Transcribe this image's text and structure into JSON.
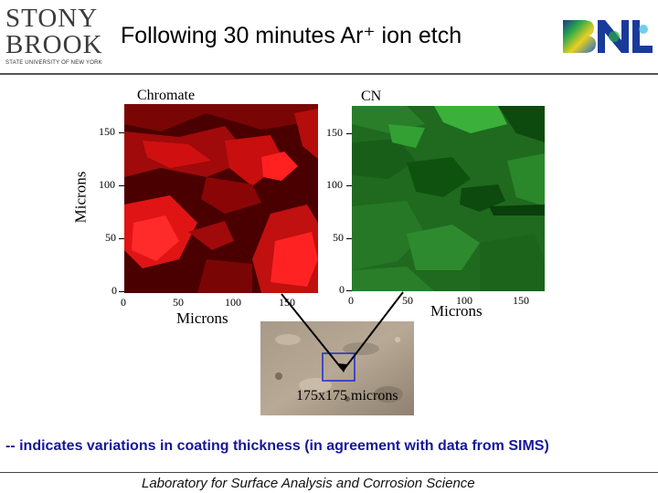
{
  "header": {
    "logo_left": {
      "line1": "STONY",
      "line2": "BROOK",
      "tagline": "STATE UNIVERSITY OF NEW YORK"
    },
    "title": "Following 30 minutes Ar⁺ ion etch",
    "logo_right": {
      "text": "BNL"
    }
  },
  "panels": {
    "chromate": {
      "label": "Chromate",
      "color": "red"
    },
    "cn": {
      "label": "CN",
      "color": "green"
    }
  },
  "axes": {
    "y_title": "Microns",
    "x_title": "Microns",
    "y_ticks": [
      "150",
      "100",
      "50",
      "0"
    ],
    "chromate_x_ticks": [
      "0",
      "50",
      "100",
      "150"
    ],
    "cn_x_ticks": [
      "0",
      "50",
      "100",
      "150"
    ]
  },
  "micrograph": {
    "caption": "175x175 microns"
  },
  "note": "-- indicates variations in coating thickness (in agreement with data from SIMS)",
  "footer": "Laboratory for Surface Analysis and Corrosion Science",
  "colors": {
    "note_text": "#16169a",
    "chromate_dark": "#4a0000",
    "chromate_bright": "#ff1a1a",
    "cn_dark": "#0d4a0d",
    "cn_bright": "#3bb03b"
  }
}
